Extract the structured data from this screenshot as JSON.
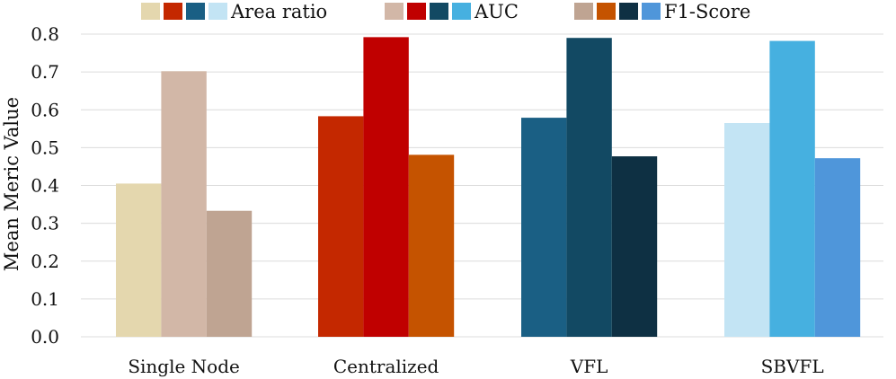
{
  "chart_data": {
    "type": "bar",
    "title": "",
    "xlabel": "",
    "ylabel": "Mean Meric Value",
    "ylim": [
      0,
      0.8
    ],
    "yticks": [
      "0.0",
      "0.1",
      "0.2",
      "0.3",
      "0.4",
      "0.5",
      "0.6",
      "0.7",
      "0.8"
    ],
    "grid": true,
    "legend_position": "top",
    "categories": [
      "Single Node",
      "Centralized",
      "VFL",
      "SBVFL"
    ],
    "series": [
      {
        "name": "Area ratio",
        "values": [
          0.405,
          0.583,
          0.579,
          0.565
        ],
        "colors": [
          "#e4d7ae",
          "#c42800",
          "#1a5f84",
          "#c3e4f4"
        ]
      },
      {
        "name": "AUC",
        "values": [
          0.702,
          0.792,
          0.79,
          0.782
        ],
        "colors": [
          "#d2b7a7",
          "#c00000",
          "#124963",
          "#46b0e0"
        ]
      },
      {
        "name": "F1-Score",
        "values": [
          0.333,
          0.481,
          0.477,
          0.472
        ],
        "colors": [
          "#bfa492",
          "#c55300",
          "#0e3043",
          "#4f96da"
        ]
      }
    ]
  }
}
